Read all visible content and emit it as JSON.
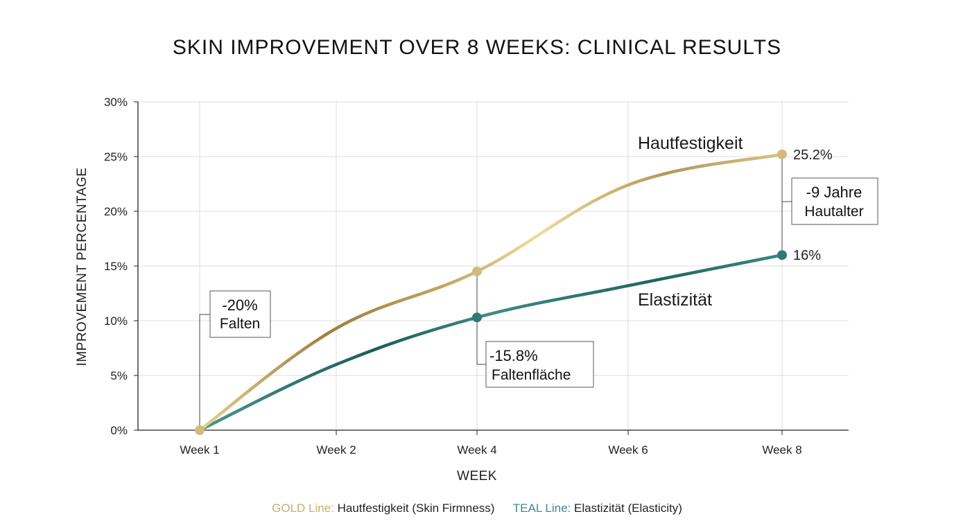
{
  "chart_data": {
    "type": "line",
    "title": "SKIN IMPROVEMENT OVER 8 WEEKS: CLINICAL RESULTS",
    "xlabel": "WEEK",
    "ylabel": "IMPROVEMENT PERCENTAGE",
    "categories": [
      "Week 1",
      "Week 2",
      "Week 4",
      "Week 6",
      "Week 8"
    ],
    "x": [
      1,
      2,
      4,
      6,
      8
    ],
    "y_ticks": [
      "0%",
      "5%",
      "10%",
      "15%",
      "20%",
      "25%",
      "30%"
    ],
    "ylim": [
      0,
      30
    ],
    "grid": true,
    "series": [
      {
        "name": "Hautfestigkeit",
        "color": "#c9ac6c",
        "values": [
          0,
          9.3,
          14.5,
          22.4,
          25.2
        ],
        "end_label": "25.2%"
      },
      {
        "name": "Elastizität",
        "color": "#2e7a77",
        "values": [
          0,
          6.0,
          10.3,
          13.2,
          16.0
        ],
        "end_label": "16%"
      }
    ],
    "annotations": [
      {
        "line1": "-20%",
        "line2": "Falten"
      },
      {
        "line1": "-15.8%",
        "line2": "Faltenfläche"
      },
      {
        "line1": "-9 Jahre",
        "line2": "Hautalter"
      }
    ],
    "legend": {
      "position": "bottom",
      "gold_key": "GOLD Line:",
      "gold_text": "Hautfestigkeit (Skin Firmness)",
      "teal_key": "TEAL Line:",
      "teal_text": "Elastizität (Elasticity)",
      "gold_color": "#c9ac6c",
      "teal_color": "#3f8a87"
    }
  }
}
